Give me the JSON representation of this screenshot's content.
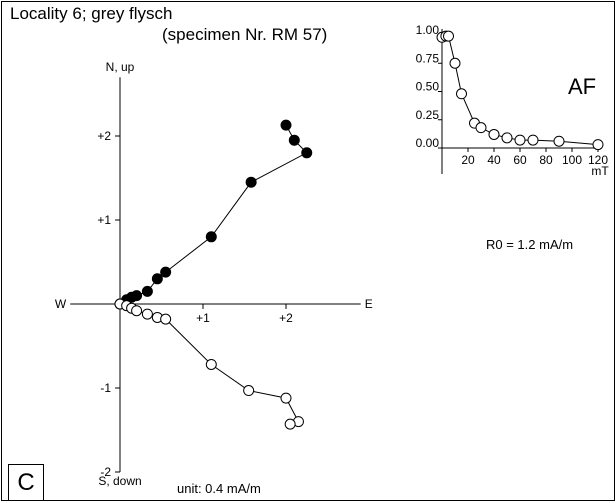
{
  "figure": {
    "title": "Locality 6; grey flysch",
    "subtitle": "(specimen Nr. RM 57)",
    "panel_label": "C",
    "unit_note": "unit: 0.4 mA/m",
    "r0_note": "R0 = 1.2 mA/m",
    "inset_label": "AF"
  },
  "chart_data": [
    {
      "type": "scatter",
      "subtype": "zijderveld",
      "axis_labels": {
        "north": "N, up",
        "south": "S, down",
        "east": "E",
        "west": "W"
      },
      "x_ticks": [
        "+1",
        "+2"
      ],
      "y_ticks": [
        "+2",
        "+1",
        "-1",
        "-2"
      ],
      "xlim": [
        -0.6,
        2.9
      ],
      "ylim": [
        -2.0,
        2.7
      ],
      "series": [
        {
          "marker": "filled",
          "x": [
            0.0,
            0.08,
            0.14,
            0.2,
            0.33,
            0.45,
            0.55,
            1.1,
            1.58,
            2.25,
            2.1,
            2.0
          ],
          "y": [
            0.0,
            0.05,
            0.08,
            0.1,
            0.15,
            0.3,
            0.38,
            0.8,
            1.45,
            1.8,
            1.95,
            2.13
          ]
        },
        {
          "marker": "open",
          "x": [
            0.0,
            0.08,
            0.14,
            0.2,
            0.33,
            0.45,
            0.55,
            1.1,
            1.55,
            2.0,
            2.15,
            2.05
          ],
          "y": [
            0.0,
            -0.02,
            -0.05,
            -0.08,
            -0.12,
            -0.16,
            -0.18,
            -0.72,
            -1.03,
            -1.12,
            -1.4,
            -1.43
          ]
        }
      ]
    },
    {
      "type": "line",
      "subtype": "af-demagnetization",
      "xlabel": "mT",
      "x_ticks": [
        "20",
        "40",
        "60",
        "80",
        "100",
        "120"
      ],
      "y_ticks": [
        "1.00",
        "0.75",
        "0.50",
        "0.25",
        "0.00"
      ],
      "xlim": [
        0,
        120
      ],
      "ylim": [
        0,
        1.0
      ],
      "x": [
        0,
        3,
        5,
        10,
        15,
        25,
        30,
        40,
        50,
        60,
        70,
        90,
        120
      ],
      "y": [
        0.98,
        0.99,
        0.99,
        0.75,
        0.48,
        0.22,
        0.18,
        0.12,
        0.09,
        0.07,
        0.07,
        0.06,
        0.03
      ]
    }
  ]
}
